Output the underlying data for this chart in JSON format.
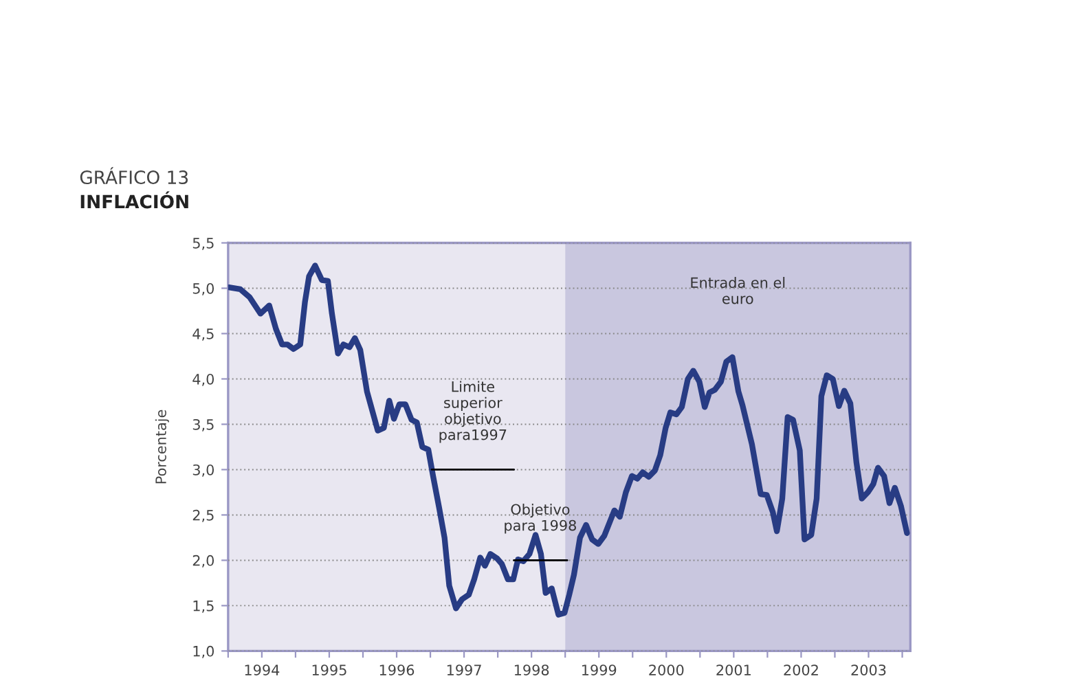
{
  "chart_data": {
    "type": "line",
    "title": "GRÁFICO 13",
    "subtitle": "INFLACIÓN",
    "ylabel": "Porcentaje",
    "xlim": [
      1994,
      2004.12
    ],
    "xticks": [
      {
        "value": 1994,
        "label": null
      },
      {
        "value": 1994.5,
        "label": "1994"
      },
      {
        "value": 1995,
        "label": null
      },
      {
        "value": 1995.5,
        "label": "1995"
      },
      {
        "value": 1996,
        "label": null
      },
      {
        "value": 1996.5,
        "label": "1996"
      },
      {
        "value": 1997,
        "label": null
      },
      {
        "value": 1997.5,
        "label": "1997"
      },
      {
        "value": 1998,
        "label": null
      },
      {
        "value": 1998.5,
        "label": "1998"
      },
      {
        "value": 1999,
        "label": null
      },
      {
        "value": 1999.5,
        "label": "1999"
      },
      {
        "value": 2000,
        "label": null
      },
      {
        "value": 2000.5,
        "label": "2000"
      },
      {
        "value": 2001,
        "label": null
      },
      {
        "value": 2001.5,
        "label": "2001"
      },
      {
        "value": 2002,
        "label": null
      },
      {
        "value": 2002.5,
        "label": "2002"
      },
      {
        "value": 2003,
        "label": null
      },
      {
        "value": 2003.5,
        "label": "2003"
      },
      {
        "value": 2004,
        "label": null
      }
    ],
    "ylim": [
      1.0,
      5.5
    ],
    "yticks": [
      {
        "value": 1.0,
        "label": "1,0"
      },
      {
        "value": 1.5,
        "label": "1,5"
      },
      {
        "value": 2.0,
        "label": "2,0"
      },
      {
        "value": 2.5,
        "label": "2,5"
      },
      {
        "value": 3.0,
        "label": "3,0"
      },
      {
        "value": 3.5,
        "label": "3,5"
      },
      {
        "value": 4.0,
        "label": "4,0"
      },
      {
        "value": 4.5,
        "label": "4,5"
      },
      {
        "value": 5.0,
        "label": "5,0"
      },
      {
        "value": 5.5,
        "label": "5,5"
      }
    ],
    "grid": "y",
    "marker": "none",
    "line_style": "solid",
    "bands": [
      {
        "axis": "x",
        "from": 1994,
        "to": 1999,
        "color": "#e9e7f1"
      },
      {
        "axis": "x",
        "from": 1999,
        "to": 2004.12,
        "color": "#c9c7df",
        "label": "Entrada en el\neuro"
      }
    ],
    "series": [
      {
        "color": "#283c84",
        "x": [
          1994.01,
          1994.18,
          1994.32,
          1994.48,
          1994.61,
          1994.71,
          1994.8,
          1994.88,
          1994.97,
          1995.07,
          1995.14,
          1995.2,
          1995.29,
          1995.39,
          1995.48,
          1995.54,
          1995.63,
          1995.71,
          1995.8,
          1995.88,
          1995.96,
          1996.06,
          1996.22,
          1996.31,
          1996.39,
          1996.46,
          1996.54,
          1996.63,
          1996.72,
          1996.8,
          1996.88,
          1996.97,
          1997.04,
          1997.13,
          1997.21,
          1997.28,
          1997.38,
          1997.47,
          1997.57,
          1997.65,
          1997.74,
          1997.81,
          1997.89,
          1997.99,
          1998.06,
          1998.15,
          1998.23,
          1998.3,
          1998.38,
          1998.47,
          1998.56,
          1998.64,
          1998.71,
          1998.8,
          1998.9,
          1998.99,
          1999.06,
          1999.13,
          1999.22,
          1999.31,
          1999.4,
          1999.49,
          1999.58,
          1999.66,
          1999.73,
          1999.81,
          1999.9,
          1999.99,
          2000.07,
          2000.15,
          2000.24,
          2000.33,
          2000.41,
          2000.49,
          2000.56,
          2000.65,
          2000.73,
          2000.82,
          2000.9,
          2000.99,
          2001.07,
          2001.14,
          2001.22,
          2001.31,
          2001.39,
          2001.48,
          2001.57,
          2001.63,
          2001.77,
          2001.9,
          2001.99,
          2002.08,
          2002.14,
          2002.22,
          2002.3,
          2002.38,
          2002.48,
          2002.55,
          2002.65,
          2002.73,
          2002.8,
          2002.88,
          2002.97,
          2003.06,
          2003.14,
          2003.23,
          2003.32,
          2003.4,
          2003.49,
          2003.57,
          2003.64,
          2003.73,
          2003.81,
          2003.89,
          2003.98,
          2004.07
        ],
        "values": [
          5.01,
          4.99,
          4.9,
          4.72,
          4.81,
          4.55,
          4.38,
          4.38,
          4.33,
          4.38,
          4.85,
          5.13,
          5.25,
          5.09,
          5.08,
          4.72,
          4.28,
          4.38,
          4.35,
          4.45,
          4.32,
          3.86,
          3.43,
          3.46,
          3.76,
          3.56,
          3.72,
          3.72,
          3.55,
          3.52,
          3.25,
          3.22,
          2.93,
          2.58,
          2.25,
          1.72,
          1.47,
          1.57,
          1.62,
          1.79,
          2.03,
          1.94,
          2.07,
          2.02,
          1.96,
          1.79,
          1.79,
          2.01,
          1.99,
          2.07,
          2.28,
          2.07,
          1.64,
          1.69,
          1.4,
          1.42,
          1.62,
          1.84,
          2.25,
          2.39,
          2.23,
          2.18,
          2.27,
          2.42,
          2.55,
          2.48,
          2.75,
          2.93,
          2.9,
          2.97,
          2.92,
          2.99,
          3.16,
          3.46,
          3.63,
          3.61,
          3.69,
          4.0,
          4.09,
          3.97,
          3.69,
          3.85,
          3.88,
          3.97,
          4.19,
          4.24,
          3.86,
          3.71,
          3.28,
          2.73,
          2.72,
          2.53,
          2.32,
          2.68,
          3.58,
          3.55,
          3.21,
          2.23,
          2.28,
          2.68,
          3.81,
          4.04,
          4.0,
          3.7,
          3.87,
          3.73,
          3.08,
          2.68,
          2.75,
          2.84,
          3.02,
          2.93,
          2.63,
          2.8,
          2.6,
          2.3
        ]
      },
      {
        "color": "#000000",
        "x": [
          1997.02,
          1998.24
        ],
        "values": [
          3.0,
          3.0
        ]
      },
      {
        "color": "#000000",
        "x": [
          1998.24,
          1999.03
        ],
        "values": [
          2.0,
          2.0
        ]
      }
    ],
    "annotations": [
      {
        "text": "Limite\nsuperior\nobjetivo\npara1997",
        "x": 1997.63,
        "y": 3.0
      },
      {
        "text": "Objetivo\npara 1998",
        "x": 1998.63,
        "y": 2.0
      }
    ]
  }
}
